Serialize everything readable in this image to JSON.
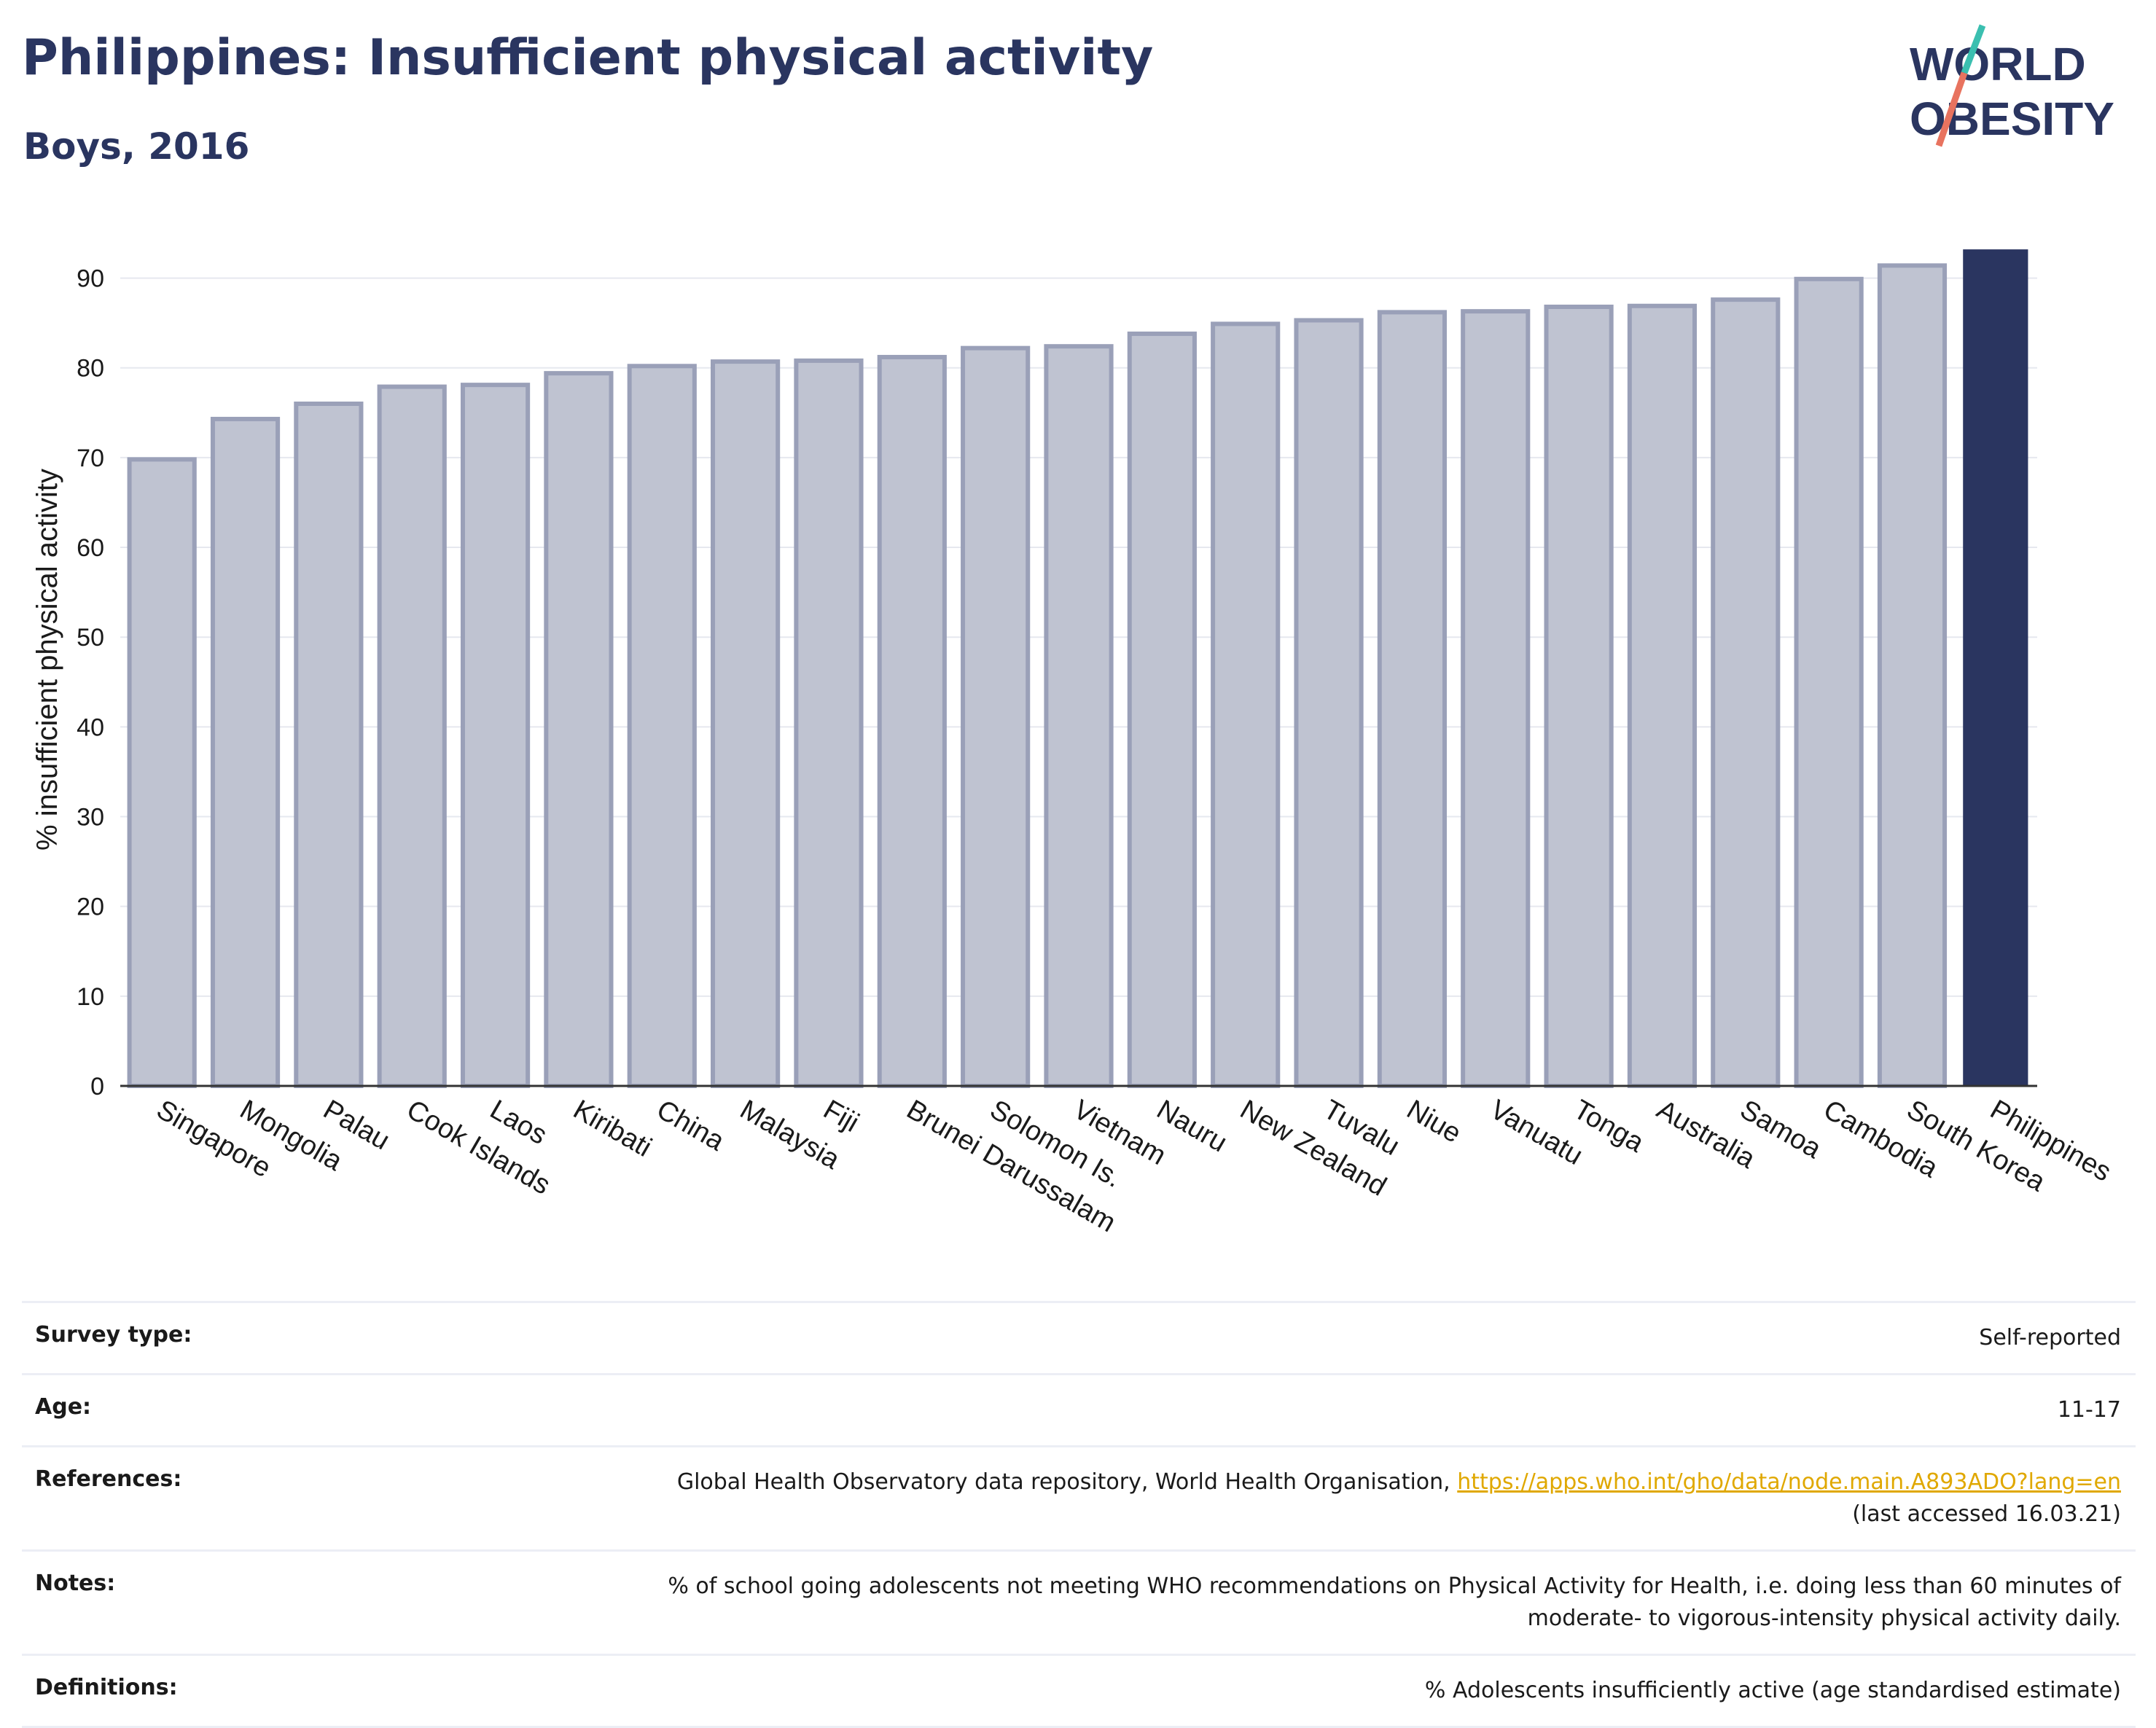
{
  "header": {
    "title": "Philippines: Insufficient physical activity",
    "subtitle": "Boys, 2016"
  },
  "logo": {
    "line1": "WORLD",
    "line2": "OBESITY"
  },
  "colors": {
    "highlight": "#2a3560",
    "bar_fill": "#bfc3d1",
    "bar_stroke": "#9aa0b8",
    "link": "#e0a800",
    "logo_teal": "#3bbfb0",
    "logo_coral": "#e8735f"
  },
  "chart_data": {
    "type": "bar",
    "categories": [
      "Singapore",
      "Mongolia",
      "Palau",
      "Cook Islands",
      "Laos",
      "Kiribati",
      "China",
      "Malaysia",
      "Fiji",
      "Brunei Darussalam",
      "Solomon Is.",
      "Vietnam",
      "Nauru",
      "New Zealand",
      "Tuvalu",
      "Niue",
      "Vanuatu",
      "Tonga",
      "Australia",
      "Samoa",
      "Cambodia",
      "South Korea",
      "Philippines"
    ],
    "values": [
      69.8,
      74.3,
      76.0,
      77.9,
      78.1,
      79.4,
      80.2,
      80.7,
      80.8,
      81.2,
      82.2,
      82.4,
      83.8,
      84.9,
      85.3,
      86.2,
      86.3,
      86.8,
      86.9,
      87.6,
      89.9,
      91.4,
      93.2
    ],
    "highlight": "Philippines",
    "ylabel": "% insufficient physical activity",
    "xlabel": "",
    "ylim": [
      0,
      95
    ],
    "yticks": [
      0,
      10,
      20,
      30,
      40,
      50,
      60,
      70,
      80,
      90
    ],
    "grid": true
  },
  "meta": {
    "survey_type_label": "Survey type:",
    "survey_type_value": "Self-reported",
    "age_label": "Age:",
    "age_value": "11-17",
    "references_label": "References:",
    "references_text": "Global Health Observatory data repository, World Health Organisation,",
    "references_link": "https://apps.who.int/gho/data/node.main.A893ADO?lang=en",
    "references_accessed": "(last accessed 16.03.21)",
    "notes_label": "Notes:",
    "notes_line1": "% of school going adolescents not meeting WHO recommendations on Physical Activity for Health, i.e. doing less than 60 minutes of",
    "notes_line2": "moderate- to vigorous-intensity physical activity daily.",
    "definitions_label": "Definitions:",
    "definitions_value": "% Adolescents insufficiently active (age standardised estimate)"
  }
}
